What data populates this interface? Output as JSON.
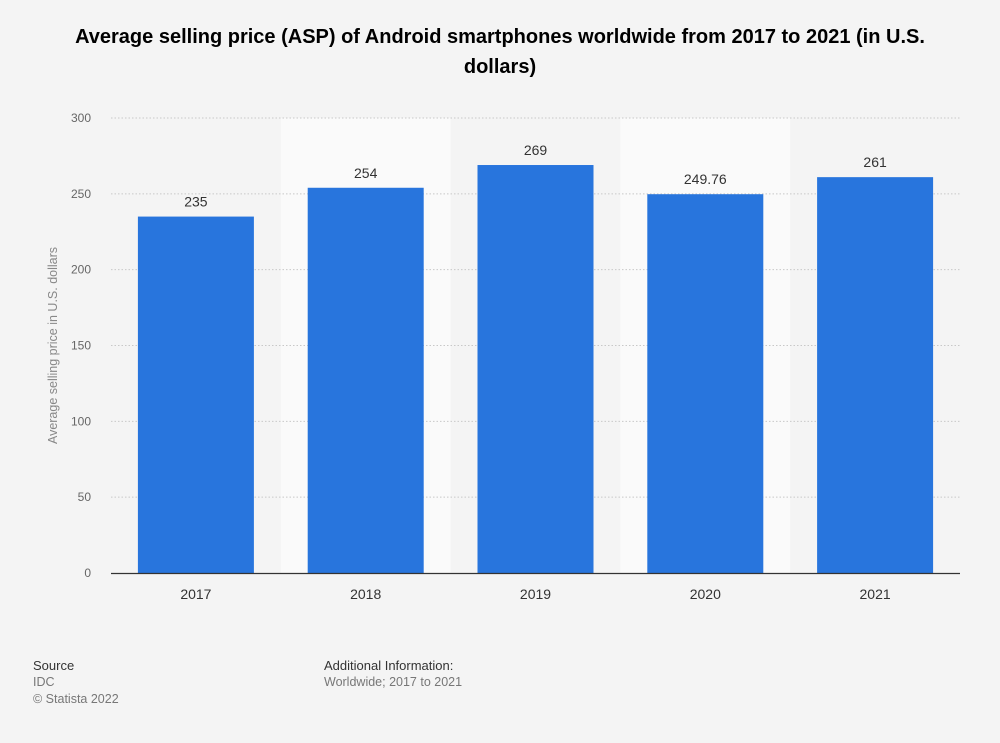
{
  "chart_data": {
    "type": "bar",
    "title": "Average selling price (ASP) of Android smartphones worldwide from 2017 to 2021 (in U.S. dollars)",
    "categories": [
      "2017",
      "2018",
      "2019",
      "2020",
      "2021"
    ],
    "values": [
      235,
      254,
      269,
      249.76,
      261
    ],
    "value_labels": [
      "235",
      "254",
      "269",
      "249.76",
      "261"
    ],
    "xlabel": "",
    "ylabel": "Average selling price in U.S. dollars",
    "ylim": [
      0,
      300
    ],
    "yticks": [
      0,
      50,
      100,
      150,
      200,
      250,
      300
    ],
    "grid": true,
    "bar_color": "#2875dd",
    "band_color": "#fafafa"
  },
  "footer": {
    "source_heading": "Source",
    "source_name": "IDC",
    "copyright": "© Statista 2022",
    "info_heading": "Additional Information:",
    "info_text": "Worldwide; 2017 to 2021"
  }
}
